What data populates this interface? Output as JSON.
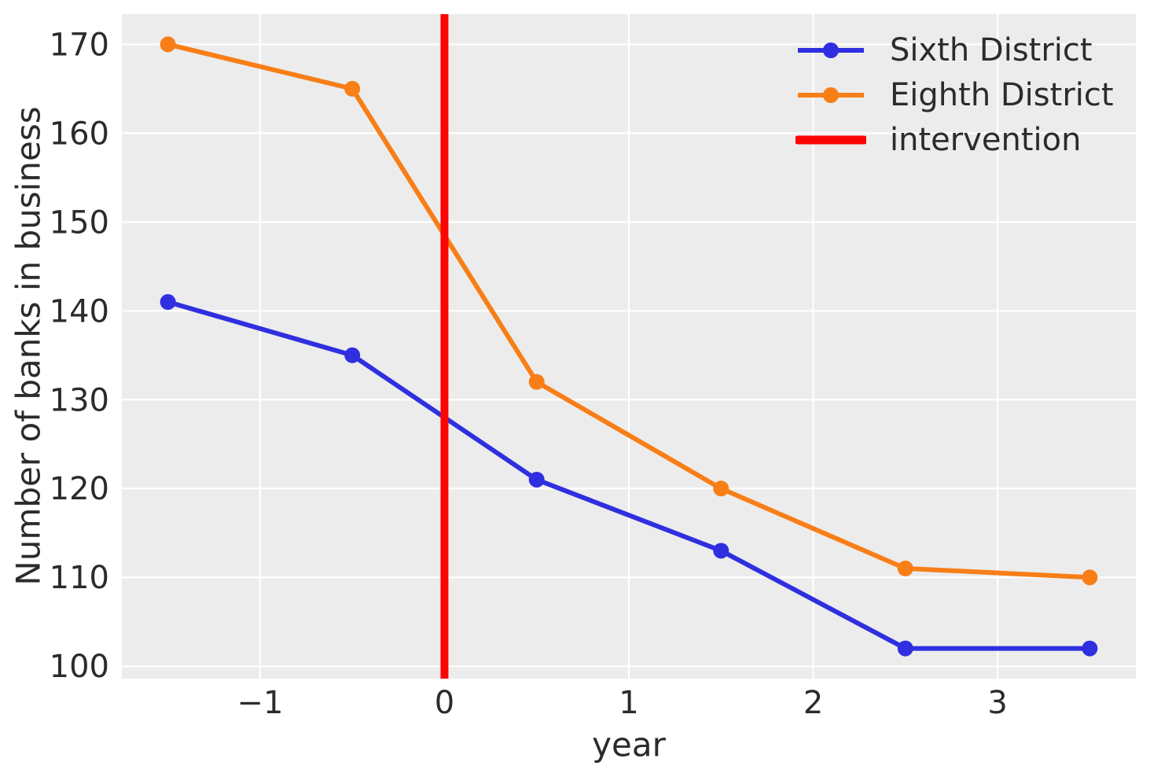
{
  "chart_data": {
    "type": "line",
    "xlabel": "year",
    "ylabel": "Number of banks in business",
    "x": [
      -1.5,
      -0.5,
      0.5,
      1.5,
      2.5,
      3.5
    ],
    "series": [
      {
        "name": "Sixth District",
        "color": "#2f2fe0",
        "marker": "circle",
        "values": [
          141,
          135,
          121,
          113,
          102,
          102
        ]
      },
      {
        "name": "Eighth District",
        "color": "#f87e17",
        "marker": "circle",
        "values": [
          170,
          165,
          132,
          120,
          111,
          110
        ]
      }
    ],
    "intervention": {
      "label": "intervention",
      "x": 0,
      "color": "#fb0505"
    },
    "xticks": [
      {
        "value": -1,
        "label": "−1"
      },
      {
        "value": 0,
        "label": "0"
      },
      {
        "value": 1,
        "label": "1"
      },
      {
        "value": 2,
        "label": "2"
      },
      {
        "value": 3,
        "label": "3"
      }
    ],
    "yticks": [
      {
        "value": 100,
        "label": "100"
      },
      {
        "value": 110,
        "label": "110"
      },
      {
        "value": 120,
        "label": "120"
      },
      {
        "value": 130,
        "label": "130"
      },
      {
        "value": 140,
        "label": "140"
      },
      {
        "value": 150,
        "label": "150"
      },
      {
        "value": 160,
        "label": "160"
      },
      {
        "value": 170,
        "label": "170"
      }
    ],
    "xlim": [
      -1.75,
      3.75
    ],
    "ylim": [
      98.6,
      173.4
    ],
    "grid": true,
    "legend_position": "upper right",
    "colors": {
      "plot_background": "#ececec",
      "grid": "#ffffff",
      "text": "#2b2b2b"
    }
  }
}
